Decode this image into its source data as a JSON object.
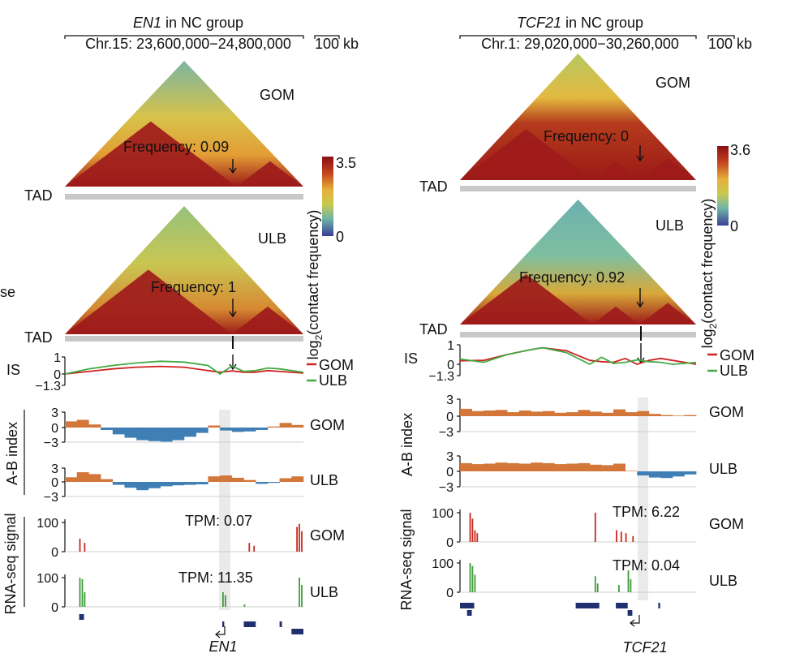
{
  "colors": {
    "red": "#9e1b1b",
    "orange": "#e8a838",
    "yellow": "#d9c54a",
    "green_mid": "#8fbf7a",
    "blue": "#4a7fb0",
    "dark_blue": "#3a3a8f",
    "gom_line": "#cc2222",
    "ulb_line": "#44aa44",
    "ab_pos": "#d2763a",
    "ab_neg": "#3f7fb5",
    "rna_gom": "#c62b1f",
    "rna_ulb": "#3f9c3a",
    "gene": "#1f2f6f",
    "tad_bar": "#c8c8c8"
  },
  "panels": [
    {
      "gene": "EN1",
      "title_suffix": " in NC group",
      "coords": "Chr.15: 23,600,000−24,800,000",
      "scale": "100 kb",
      "colorbar_label": "log",
      "colorbar_sub": "2",
      "colorbar_label_rest": "(contact frequency)",
      "colorbar_max": "3.5",
      "colorbar_min": "0",
      "heatmaps": [
        {
          "label": "GOM",
          "freq": "Frequency: 0.09",
          "tad": "TAD"
        },
        {
          "label": "ULB",
          "freq": "Frequency: 1",
          "tad": "TAD"
        }
      ],
      "is_label": "IS",
      "is_ticks": [
        "1",
        "0",
        "−1.3"
      ],
      "is_legend": [
        "GOM",
        "ULB"
      ],
      "ab_label": "A-B index",
      "ab_ticks": [
        "3",
        "0",
        "−3"
      ],
      "ab_tracks": [
        "GOM",
        "ULB"
      ],
      "rna_label": "RNA-seq signal",
      "rna_ticks": [
        "100",
        "0"
      ],
      "rna_tracks": [
        {
          "label": "GOM",
          "tpm": "TPM: 0.07"
        },
        {
          "label": "ULB",
          "tpm": "TPM: 11.35"
        }
      ],
      "gene_label": "EN1",
      "side_text": "se"
    },
    {
      "gene": "TCF21",
      "title_suffix": " in NC group",
      "coords": "Chr.1: 29,020,000−30,260,000",
      "scale": "100 kb",
      "colorbar_label": "log",
      "colorbar_sub": "2",
      "colorbar_label_rest": "(contact frequency)",
      "colorbar_max": "3.6",
      "colorbar_min": "0",
      "heatmaps": [
        {
          "label": "GOM",
          "freq": "Frequency: 0",
          "tad": "TAD"
        },
        {
          "label": "ULB",
          "freq": "Frequency: 0.92",
          "tad": "TAD"
        }
      ],
      "is_label": "IS",
      "is_ticks": [
        "1",
        "0",
        "−1.3"
      ],
      "is_legend": [
        "GOM",
        "ULB"
      ],
      "ab_label": "A-B index",
      "ab_ticks": [
        "3",
        "0",
        "−3"
      ],
      "ab_tracks": [
        "GOM",
        "ULB"
      ],
      "rna_label": "RNA-seq signal",
      "rna_ticks": [
        "100",
        "0"
      ],
      "rna_tracks": [
        {
          "label": "GOM",
          "tpm": "TPM: 6.22"
        },
        {
          "label": "ULB",
          "tpm": "TPM: 0.04"
        }
      ],
      "gene_label": "TCF21"
    }
  ],
  "chart_data": [
    {
      "type": "heatmap",
      "title": "EN1 in NC group",
      "region": "Chr.15: 23,600,000−24,800,000",
      "colorbar": {
        "label": "log2(contact frequency)",
        "range": [
          0,
          3.5
        ]
      },
      "samples": [
        {
          "name": "GOM",
          "frequency": 0.09
        },
        {
          "name": "ULB",
          "frequency": 1
        }
      ],
      "insulation_score": {
        "ylim": [
          -1.3,
          1
        ],
        "x": [
          0,
          0.1,
          0.2,
          0.3,
          0.4,
          0.5,
          0.6,
          0.65,
          0.7,
          0.75,
          0.8,
          0.85,
          0.9,
          1.0
        ],
        "series": [
          {
            "name": "GOM",
            "values": [
              0,
              0.15,
              0.3,
              0.4,
              0.45,
              0.4,
              0.2,
              -0.2,
              -0.35,
              -0.2,
              0.1,
              0.2,
              0.15,
              0.05
            ]
          },
          {
            "name": "ULB",
            "values": [
              0,
              0.3,
              0.5,
              0.65,
              0.75,
              0.7,
              0.5,
              0.0,
              -0.9,
              -0.3,
              0.2,
              0.35,
              0.3,
              0.1
            ]
          }
        ]
      },
      "ab_index": {
        "ylim": [
          -3,
          3
        ],
        "series": [
          {
            "name": "GOM",
            "values": [
              1.2,
              1.5,
              0.6,
              -0.5,
              -1.4,
              -2.1,
              -2.6,
              -2.8,
              -2.9,
              -2.6,
              -1.9,
              -1.1,
              0.4,
              -0.6,
              -0.9,
              -0.8,
              -0.5,
              0.2,
              0.9,
              0.5
            ]
          },
          {
            "name": "ULB",
            "values": [
              1.0,
              2.1,
              1.7,
              0.6,
              -0.6,
              -1.2,
              -1.7,
              -1.3,
              -0.9,
              -0.7,
              -0.6,
              -0.5,
              1.2,
              1.4,
              0.9,
              0.4,
              -0.4,
              -0.2,
              0.8,
              1.2
            ]
          }
        ]
      },
      "rna_seq": {
        "ylim": [
          0,
          100
        ],
        "series": [
          {
            "name": "GOM",
            "tpm": 0.07,
            "peaks": [
              {
                "x": 0.06,
                "v": 45
              },
              {
                "x": 0.08,
                "v": 30
              },
              {
                "x": 0.77,
                "v": 30
              },
              {
                "x": 0.79,
                "v": 20
              },
              {
                "x": 0.97,
                "v": 85
              },
              {
                "x": 0.98,
                "v": 95
              },
              {
                "x": 0.99,
                "v": 70
              }
            ]
          },
          {
            "name": "ULB",
            "tpm": 11.35,
            "peaks": [
              {
                "x": 0.06,
                "v": 100
              },
              {
                "x": 0.07,
                "v": 95
              },
              {
                "x": 0.08,
                "v": 50
              },
              {
                "x": 0.66,
                "v": 50
              },
              {
                "x": 0.67,
                "v": 40
              },
              {
                "x": 0.75,
                "v": 8
              },
              {
                "x": 0.98,
                "v": 100
              },
              {
                "x": 0.99,
                "v": 75
              }
            ]
          }
        ]
      }
    },
    {
      "type": "heatmap",
      "title": "TCF21 in NC group",
      "region": "Chr.1: 29,020,000−30,260,000",
      "colorbar": {
        "label": "log2(contact frequency)",
        "range": [
          0,
          3.6
        ]
      },
      "samples": [
        {
          "name": "GOM",
          "frequency": 0
        },
        {
          "name": "ULB",
          "frequency": 0.92
        }
      ],
      "insulation_score": {
        "ylim": [
          -1.3,
          1
        ],
        "x": [
          0,
          0.1,
          0.2,
          0.3,
          0.35,
          0.45,
          0.55,
          0.6,
          0.65,
          0.7,
          0.75,
          0.8,
          0.85,
          0.9,
          1.0
        ],
        "series": [
          {
            "name": "GOM",
            "values": [
              -0.4,
              0.2,
              0.5,
              0.75,
              0.85,
              0.7,
              0.2,
              -0.3,
              0.1,
              0.3,
              0.0,
              0.2,
              0.3,
              0.2,
              0.0
            ]
          },
          {
            "name": "ULB",
            "values": [
              -0.6,
              0.1,
              0.5,
              0.75,
              0.85,
              0.6,
              0.0,
              -0.8,
              -0.1,
              0.1,
              -0.5,
              -0.3,
              0.1,
              0.0,
              -0.2
            ]
          }
        ]
      },
      "ab_index": {
        "ylim": [
          -3,
          3
        ],
        "series": [
          {
            "name": "GOM",
            "values": [
              1.3,
              0.9,
              1.0,
              1.1,
              0.7,
              1.0,
              0.8,
              0.9,
              0.6,
              0.7,
              1.1,
              0.8,
              0.6,
              1.2,
              0.7,
              0.9,
              0.4,
              0.2,
              0.1,
              0.2
            ]
          },
          {
            "name": "ULB",
            "values": [
              1.6,
              1.4,
              1.5,
              1.7,
              1.6,
              1.5,
              1.7,
              1.6,
              1.4,
              1.5,
              1.6,
              1.3,
              1.2,
              1.5,
              0.1,
              -0.8,
              -1.2,
              -1.3,
              -1.0,
              -0.6
            ]
          }
        ]
      },
      "rna_seq": {
        "ylim": [
          0,
          100
        ],
        "series": [
          {
            "name": "GOM",
            "tpm": 6.22,
            "peaks": [
              {
                "x": 0.04,
                "v": 100
              },
              {
                "x": 0.05,
                "v": 80
              },
              {
                "x": 0.06,
                "v": 40
              },
              {
                "x": 0.07,
                "v": 30
              },
              {
                "x": 0.57,
                "v": 100
              },
              {
                "x": 0.66,
                "v": 40
              },
              {
                "x": 0.68,
                "v": 35
              },
              {
                "x": 0.7,
                "v": 30
              },
              {
                "x": 0.73,
                "v": 20
              }
            ]
          },
          {
            "name": "ULB",
            "tpm": 0.04,
            "peaks": [
              {
                "x": 0.04,
                "v": 100
              },
              {
                "x": 0.05,
                "v": 90
              },
              {
                "x": 0.06,
                "v": 60
              },
              {
                "x": 0.57,
                "v": 55
              },
              {
                "x": 0.58,
                "v": 30
              },
              {
                "x": 0.67,
                "v": 25
              },
              {
                "x": 0.71,
                "v": 75
              },
              {
                "x": 0.72,
                "v": 45
              }
            ]
          }
        ]
      }
    }
  ]
}
